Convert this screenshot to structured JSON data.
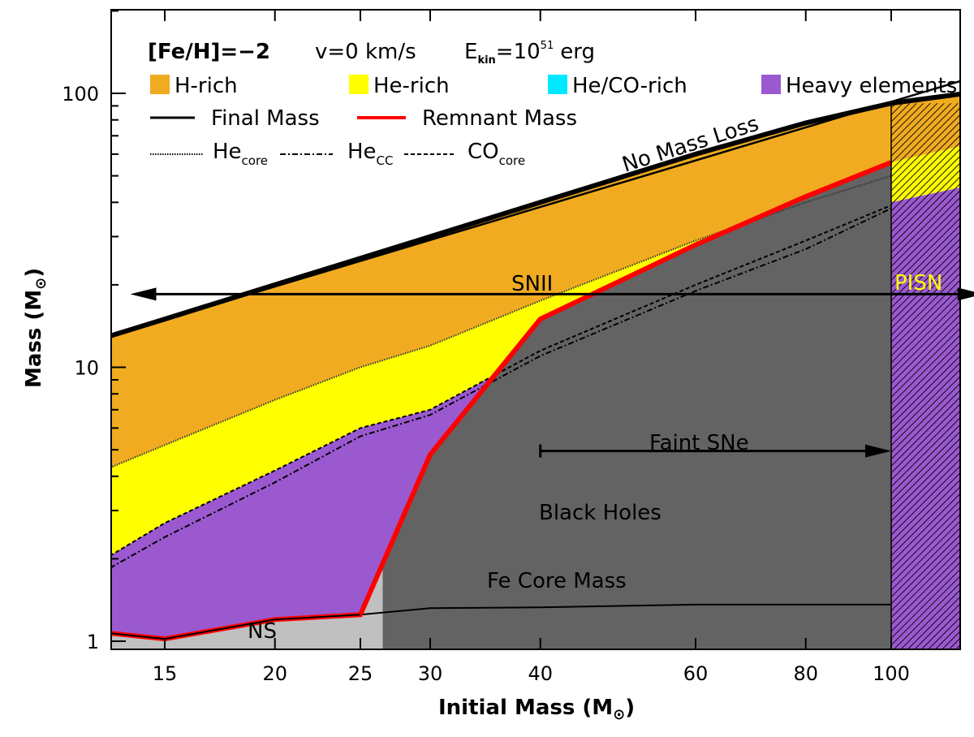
{
  "chart_data": {
    "type": "area",
    "xlabel": "Initial Mass (M",
    "xlabel_suffix": ")",
    "ylabel": "Mass (M",
    "ylabel_suffix": ")",
    "x_scale": "log",
    "y_scale": "log",
    "xlim": [
      13,
      130
    ],
    "ylim": [
      1,
      200
    ],
    "x_ticks": [
      15,
      20,
      25,
      30,
      40,
      60,
      80,
      100
    ],
    "y_ticks": [
      1,
      10,
      100
    ],
    "x_tick_labels": [
      "15",
      "20",
      "25",
      "30",
      "40",
      "60",
      "80",
      "100"
    ],
    "y_tick_labels": [
      "1",
      "10",
      "100"
    ],
    "header": {
      "feh": "[Fe/H]=−2",
      "velocity": "v=0 km/s",
      "ekin_prefix": "E",
      "ekin_sub": "kin",
      "ekin_eq": "=10",
      "ekin_sup": "51",
      "ekin_unit": "erg"
    },
    "legend": {
      "fills": [
        {
          "label": "H-rich",
          "color": "#f0ab20"
        },
        {
          "label": "He-rich",
          "color": "#ffff00"
        },
        {
          "label": "He/CO-rich",
          "color": "#00e8ff"
        },
        {
          "label": "Heavy elements",
          "color": "#9b59d0"
        }
      ],
      "final_mass": "Final Mass",
      "remnant_mass": "Remnant Mass",
      "he_core": "He",
      "he_core_sub": "core",
      "he_cc": "He",
      "he_cc_sub": "CC",
      "co_core": "CO",
      "co_core_sub": "core"
    },
    "colors": {
      "h_rich": "#f0ab20",
      "he_rich": "#ffff00",
      "heavy": "#9b59d0",
      "black_hole": "#636363",
      "ns": "#c0c0c0",
      "remnant": "#ff0000"
    },
    "series": [
      {
        "key": "no_mass_loss",
        "x": [
          13,
          130
        ],
        "y": [
          13,
          120
        ]
      },
      {
        "key": "final_mass",
        "x": [
          13,
          15,
          20,
          25,
          30,
          40,
          60,
          80,
          100,
          130
        ],
        "y": [
          13,
          15,
          20,
          25,
          30,
          40,
          60,
          78,
          92,
          103
        ]
      },
      {
        "key": "he_core",
        "x": [
          13,
          15,
          20,
          25,
          30,
          40,
          60,
          80,
          100
        ],
        "y": [
          4.3,
          5.2,
          7.6,
          10.0,
          12.0,
          17.5,
          29.0,
          40.0,
          50.0
        ]
      },
      {
        "key": "co_core",
        "x": [
          13,
          15,
          20,
          25,
          30,
          40,
          60,
          80,
          100
        ],
        "y": [
          2.05,
          2.7,
          4.2,
          6.0,
          7.0,
          11.5,
          20.0,
          29.0,
          39.0
        ]
      },
      {
        "key": "he_cc",
        "x": [
          13,
          15,
          20,
          25,
          30,
          40,
          60,
          80,
          100
        ],
        "y": [
          1.85,
          2.4,
          3.8,
          5.6,
          6.7,
          11.0,
          19.0,
          27.0,
          38.0
        ]
      },
      {
        "key": "remnant_mass",
        "x": [
          13,
          15,
          20,
          25,
          30,
          40,
          60,
          80,
          100
        ],
        "y": [
          1.07,
          1.02,
          1.2,
          1.25,
          4.8,
          15.0,
          28.0,
          42.0,
          56.0
        ]
      },
      {
        "key": "fe_core",
        "x": [
          25,
          30,
          40,
          60,
          80,
          100
        ],
        "y": [
          1.25,
          1.32,
          1.33,
          1.36,
          1.36,
          1.36
        ]
      },
      {
        "key": "pisn_top",
        "x": [
          100,
          130
        ],
        "y": [
          92,
          103
        ]
      },
      {
        "key": "pisn_he",
        "x": [
          100,
          130
        ],
        "y": [
          56,
          68
        ]
      },
      {
        "key": "pisn_heavy",
        "x": [
          100,
          130
        ],
        "y": [
          40,
          48
        ]
      }
    ],
    "ns_bh_boundary_x": 26.5,
    "pisn_x": 100,
    "annotations": {
      "no_mass_loss": "No Mass Loss",
      "snii": "SNII",
      "pisn": "PISN",
      "faint_sne": "Faint SNe",
      "black_holes": "Black Holes",
      "fe_core_mass": "Fe Core Mass",
      "ns": "NS"
    },
    "arrows": {
      "snii": {
        "x": [
          13,
          130
        ],
        "y": 18.5
      },
      "faint_sne": {
        "x": [
          40,
          100
        ],
        "y": 4.95
      }
    }
  }
}
